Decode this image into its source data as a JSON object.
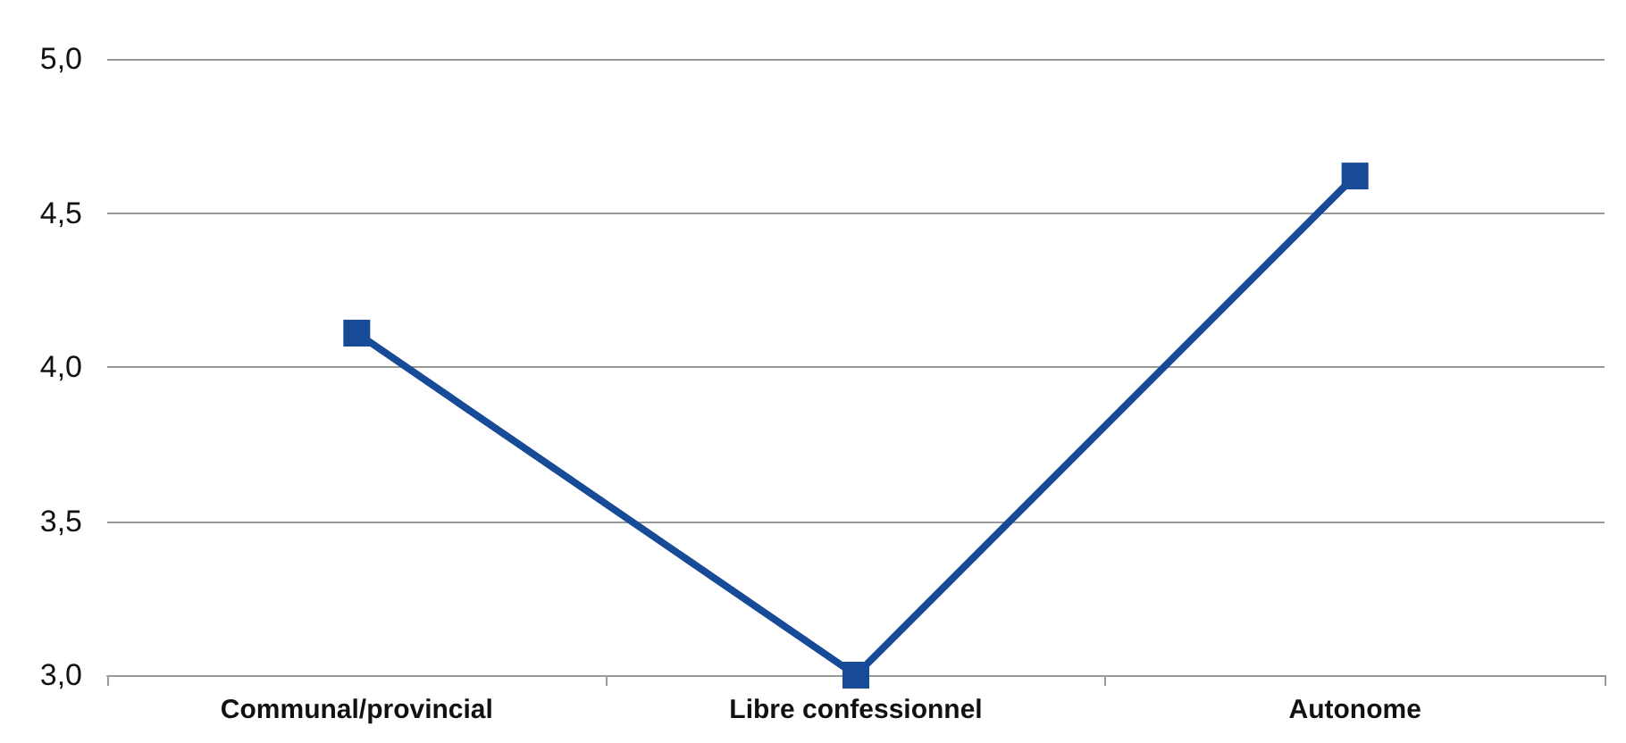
{
  "chart_data": {
    "type": "line",
    "categories": [
      "Communal/provincial",
      "Libre confessionnel",
      "Autonome"
    ],
    "series": [
      {
        "color": "#174a97",
        "values": [
          4.11,
          3.0,
          4.62
        ]
      }
    ],
    "ylim": [
      3,
      5
    ],
    "yticks": [
      {
        "value": 3,
        "label": "3,0"
      },
      {
        "value": 3.5,
        "label": "3,5"
      },
      {
        "value": 4,
        "label": "4,0"
      },
      {
        "value": 4.5,
        "label": "4,5"
      },
      {
        "value": 5,
        "label": "5,0"
      }
    ],
    "grid": "y",
    "marker": "square",
    "line_style": "solid"
  }
}
